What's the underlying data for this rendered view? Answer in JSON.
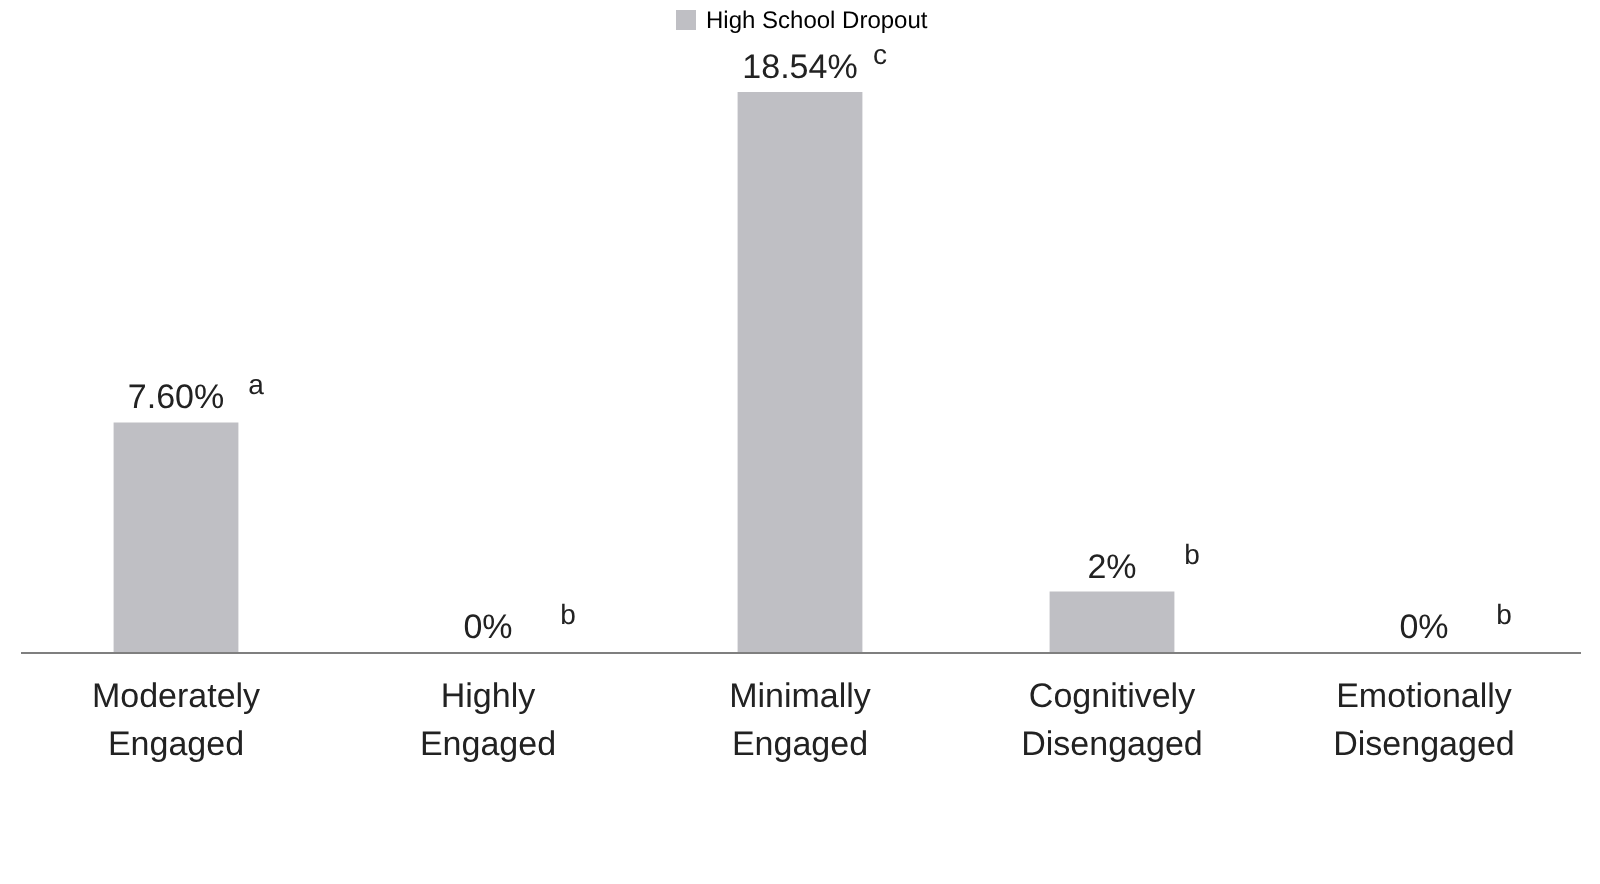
{
  "chart_data": {
    "type": "bar",
    "categories": [
      "Moderately Engaged",
      "Highly Engaged",
      "Minimally Engaged",
      "Cognitively Disengaged",
      "Emotionally Disengaged"
    ],
    "series": [
      {
        "name": "High School Dropout",
        "color": "#bfbfc4",
        "values": [
          7.6,
          0,
          18.54,
          2,
          0
        ],
        "value_labels": [
          "7.60%",
          "0%",
          "18.54%",
          "2%",
          "0%"
        ]
      }
    ],
    "annotations": [
      {
        "text": "a",
        "x": "Moderately Engaged",
        "y": 7.6
      },
      {
        "text": "b",
        "x": "Highly Engaged",
        "y": 0
      },
      {
        "text": "c",
        "x": "Minimally Engaged",
        "y": 18.54
      },
      {
        "text": "b",
        "x": "Cognitively Disengaged",
        "y": 2
      },
      {
        "text": "b",
        "x": "Emotionally Disengaged",
        "y": 0
      }
    ],
    "legend": "top",
    "grid": false
  }
}
